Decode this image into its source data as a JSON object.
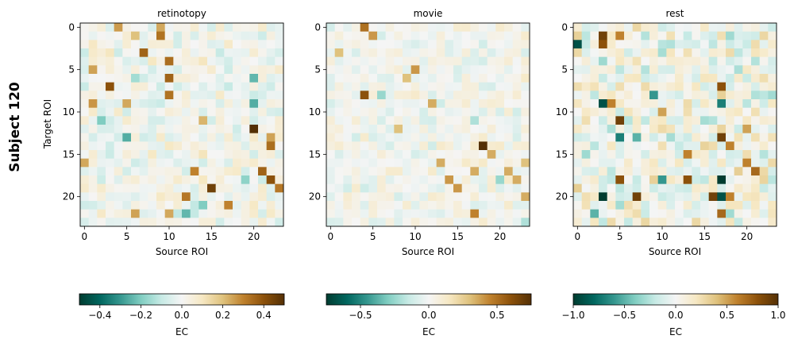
{
  "suptitle": "Subject 120",
  "ylabel": "Target ROI",
  "xlabel": "Source ROI",
  "colorbar_label": "EC",
  "chart_data": [
    {
      "type": "heatmap",
      "title": "retinotopy",
      "n_rois": 24,
      "xlabel": "Source ROI",
      "ylabel": "Target ROI",
      "xticks": [
        0,
        5,
        10,
        15,
        20
      ],
      "yticks": [
        0,
        5,
        10,
        15,
        20
      ],
      "vmin": -0.5,
      "vmax": 0.5,
      "colorbar_ticks": [
        -0.4,
        -0.2,
        0.0,
        0.2,
        0.4
      ],
      "colorbar_tick_labels": [
        "−0.4",
        "−0.2",
        "0.0",
        "0.2",
        "0.4"
      ],
      "colorbar_label": "EC",
      "strong_cells": [
        {
          "row": 0,
          "col": 4,
          "value": 0.26
        },
        {
          "row": 0,
          "col": 9,
          "value": 0.24
        },
        {
          "row": 1,
          "col": 9,
          "value": 0.33
        },
        {
          "row": 1,
          "col": 6,
          "value": 0.2
        },
        {
          "row": 3,
          "col": 7,
          "value": 0.36
        },
        {
          "row": 4,
          "col": 10,
          "value": 0.34
        },
        {
          "row": 5,
          "col": 1,
          "value": 0.25
        },
        {
          "row": 6,
          "col": 10,
          "value": 0.36
        },
        {
          "row": 7,
          "col": 3,
          "value": 0.4
        },
        {
          "row": 8,
          "col": 10,
          "value": 0.33
        },
        {
          "row": 9,
          "col": 1,
          "value": 0.27
        },
        {
          "row": 9,
          "col": 5,
          "value": 0.24
        },
        {
          "row": 12,
          "col": 20,
          "value": 0.5
        },
        {
          "row": 11,
          "col": 14,
          "value": 0.22
        },
        {
          "row": 13,
          "col": 22,
          "value": 0.25
        },
        {
          "row": 14,
          "col": 22,
          "value": 0.34
        },
        {
          "row": 16,
          "col": 0,
          "value": 0.24
        },
        {
          "row": 17,
          "col": 13,
          "value": 0.3
        },
        {
          "row": 17,
          "col": 21,
          "value": 0.36
        },
        {
          "row": 18,
          "col": 22,
          "value": 0.4
        },
        {
          "row": 19,
          "col": 15,
          "value": 0.45
        },
        {
          "row": 19,
          "col": 23,
          "value": 0.32
        },
        {
          "row": 20,
          "col": 12,
          "value": 0.32
        },
        {
          "row": 21,
          "col": 17,
          "value": 0.3
        },
        {
          "row": 22,
          "col": 6,
          "value": 0.25
        },
        {
          "row": 22,
          "col": 10,
          "value": 0.24
        },
        {
          "row": 6,
          "col": 20,
          "value": -0.24
        },
        {
          "row": 9,
          "col": 20,
          "value": -0.26
        },
        {
          "row": 11,
          "col": 2,
          "value": -0.2
        },
        {
          "row": 13,
          "col": 5,
          "value": -0.26
        },
        {
          "row": 21,
          "col": 14,
          "value": -0.2
        },
        {
          "row": 22,
          "col": 12,
          "value": -0.24
        },
        {
          "row": 18,
          "col": 19,
          "value": -0.18
        },
        {
          "row": 6,
          "col": 6,
          "value": -0.15
        }
      ],
      "noise_seed": 11,
      "noise_scale": 0.1
    },
    {
      "type": "heatmap",
      "title": "movie",
      "n_rois": 24,
      "xlabel": "Source ROI",
      "ylabel": "",
      "xticks": [
        0,
        5,
        10,
        15,
        20
      ],
      "yticks": [
        0,
        5,
        10,
        15,
        20
      ],
      "vmin": -0.75,
      "vmax": 0.75,
      "colorbar_ticks": [
        -0.5,
        0.0,
        0.5
      ],
      "colorbar_tick_labels": [
        "−0.5",
        "0.0",
        "0.5"
      ],
      "colorbar_label": "EC",
      "strong_cells": [
        {
          "row": 0,
          "col": 4,
          "value": 0.5
        },
        {
          "row": 1,
          "col": 5,
          "value": 0.4
        },
        {
          "row": 5,
          "col": 10,
          "value": 0.4
        },
        {
          "row": 6,
          "col": 9,
          "value": 0.3
        },
        {
          "row": 8,
          "col": 4,
          "value": 0.6
        },
        {
          "row": 14,
          "col": 18,
          "value": 0.75
        },
        {
          "row": 15,
          "col": 19,
          "value": 0.35
        },
        {
          "row": 17,
          "col": 17,
          "value": 0.35
        },
        {
          "row": 16,
          "col": 13,
          "value": 0.35
        },
        {
          "row": 18,
          "col": 14,
          "value": 0.4
        },
        {
          "row": 17,
          "col": 21,
          "value": 0.35
        },
        {
          "row": 19,
          "col": 15,
          "value": 0.4
        },
        {
          "row": 22,
          "col": 17,
          "value": 0.45
        },
        {
          "row": 18,
          "col": 22,
          "value": 0.35
        },
        {
          "row": 20,
          "col": 23,
          "value": 0.35
        },
        {
          "row": 16,
          "col": 23,
          "value": 0.3
        },
        {
          "row": 9,
          "col": 12,
          "value": 0.35
        },
        {
          "row": 12,
          "col": 8,
          "value": 0.3
        },
        {
          "row": 3,
          "col": 1,
          "value": 0.3
        },
        {
          "row": 8,
          "col": 6,
          "value": -0.25
        },
        {
          "row": 18,
          "col": 20,
          "value": -0.25
        },
        {
          "row": 11,
          "col": 17,
          "value": -0.2
        },
        {
          "row": 23,
          "col": 23,
          "value": -0.2
        }
      ],
      "noise_seed": 23,
      "noise_scale": 0.12
    },
    {
      "type": "heatmap",
      "title": "rest",
      "n_rois": 24,
      "xlabel": "Source ROI",
      "ylabel": "",
      "xticks": [
        0,
        5,
        10,
        15,
        20
      ],
      "yticks": [
        0,
        5,
        10,
        15,
        20
      ],
      "vmin": -1.0,
      "vmax": 1.0,
      "colorbar_ticks": [
        -1.0,
        -0.5,
        0.0,
        0.5,
        1.0
      ],
      "colorbar_tick_labels": [
        "−1.0",
        "−0.5",
        "0.0",
        "0.5",
        "1.0"
      ],
      "colorbar_label": "EC",
      "strong_cells": [
        {
          "row": 1,
          "col": 3,
          "value": 0.9
        },
        {
          "row": 2,
          "col": 3,
          "value": 0.8
        },
        {
          "row": 2,
          "col": 0,
          "value": -0.9
        },
        {
          "row": 1,
          "col": 5,
          "value": 0.6
        },
        {
          "row": 9,
          "col": 3,
          "value": -0.9
        },
        {
          "row": 9,
          "col": 4,
          "value": 0.6
        },
        {
          "row": 8,
          "col": 9,
          "value": -0.6
        },
        {
          "row": 9,
          "col": 17,
          "value": -0.7
        },
        {
          "row": 7,
          "col": 17,
          "value": 0.8
        },
        {
          "row": 10,
          "col": 10,
          "value": 0.5
        },
        {
          "row": 11,
          "col": 5,
          "value": 0.9
        },
        {
          "row": 12,
          "col": 20,
          "value": 0.5
        },
        {
          "row": 13,
          "col": 5,
          "value": -0.7
        },
        {
          "row": 13,
          "col": 7,
          "value": -0.5
        },
        {
          "row": 13,
          "col": 17,
          "value": 0.9
        },
        {
          "row": 14,
          "col": 18,
          "value": 0.6
        },
        {
          "row": 15,
          "col": 13,
          "value": 0.6
        },
        {
          "row": 16,
          "col": 20,
          "value": 0.6
        },
        {
          "row": 17,
          "col": 21,
          "value": 0.7
        },
        {
          "row": 18,
          "col": 5,
          "value": 0.8
        },
        {
          "row": 18,
          "col": 13,
          "value": 0.8
        },
        {
          "row": 18,
          "col": 17,
          "value": -1.0
        },
        {
          "row": 18,
          "col": 10,
          "value": -0.6
        },
        {
          "row": 20,
          "col": 3,
          "value": -1.0
        },
        {
          "row": 20,
          "col": 7,
          "value": 0.9
        },
        {
          "row": 20,
          "col": 16,
          "value": 0.9
        },
        {
          "row": 20,
          "col": 17,
          "value": -0.9
        },
        {
          "row": 20,
          "col": 18,
          "value": 0.6
        },
        {
          "row": 22,
          "col": 17,
          "value": 0.7
        },
        {
          "row": 22,
          "col": 2,
          "value": -0.5
        }
      ],
      "noise_seed": 37,
      "noise_scale": 0.3
    }
  ]
}
